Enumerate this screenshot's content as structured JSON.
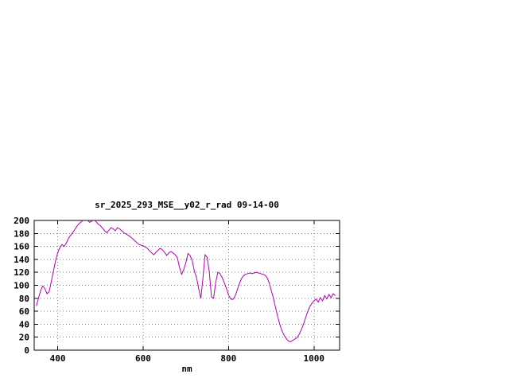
{
  "page": {
    "background": "#ffffff"
  },
  "chart_data": {
    "type": "line",
    "title": "sr_2025_293_MSE__y02_r_rad 09-14-00",
    "xlabel": "nm",
    "ylabel": "",
    "xlim": [
      345,
      1060
    ],
    "ylim": [
      0,
      200
    ],
    "xticks": [
      400,
      600,
      800,
      1000
    ],
    "yticks": [
      0,
      20,
      40,
      60,
      80,
      100,
      120,
      140,
      160,
      180,
      200
    ],
    "grid": true,
    "legend": "none",
    "line_color": "#b400b4",
    "series": [
      {
        "name": "sr_2025_293_MSE__y02_r_rad",
        "points": [
          [
            350,
            68
          ],
          [
            355,
            80
          ],
          [
            360,
            92
          ],
          [
            365,
            99
          ],
          [
            370,
            95
          ],
          [
            375,
            87
          ],
          [
            380,
            90
          ],
          [
            385,
            106
          ],
          [
            390,
            122
          ],
          [
            395,
            138
          ],
          [
            400,
            150
          ],
          [
            405,
            158
          ],
          [
            410,
            163
          ],
          [
            415,
            160
          ],
          [
            420,
            165
          ],
          [
            425,
            172
          ],
          [
            430,
            177
          ],
          [
            435,
            181
          ],
          [
            440,
            186
          ],
          [
            445,
            191
          ],
          [
            450,
            195
          ],
          [
            455,
            198
          ],
          [
            460,
            200
          ],
          [
            465,
            202
          ],
          [
            470,
            200
          ],
          [
            475,
            197
          ],
          [
            480,
            199
          ],
          [
            485,
            201
          ],
          [
            490,
            198
          ],
          [
            495,
            194
          ],
          [
            500,
            192
          ],
          [
            505,
            188
          ],
          [
            510,
            184
          ],
          [
            515,
            181
          ],
          [
            520,
            185
          ],
          [
            525,
            189
          ],
          [
            530,
            187
          ],
          [
            535,
            184
          ],
          [
            540,
            189
          ],
          [
            545,
            187
          ],
          [
            550,
            184
          ],
          [
            555,
            181
          ],
          [
            560,
            179
          ],
          [
            565,
            177
          ],
          [
            570,
            175
          ],
          [
            575,
            172
          ],
          [
            580,
            169
          ],
          [
            585,
            166
          ],
          [
            590,
            163
          ],
          [
            595,
            162
          ],
          [
            600,
            161
          ],
          [
            605,
            159
          ],
          [
            610,
            157
          ],
          [
            615,
            153
          ],
          [
            620,
            150
          ],
          [
            625,
            147
          ],
          [
            630,
            151
          ],
          [
            635,
            154
          ],
          [
            640,
            157
          ],
          [
            645,
            155
          ],
          [
            650,
            151
          ],
          [
            655,
            146
          ],
          [
            660,
            150
          ],
          [
            665,
            152
          ],
          [
            670,
            150
          ],
          [
            675,
            147
          ],
          [
            680,
            143
          ],
          [
            685,
            128
          ],
          [
            690,
            117
          ],
          [
            695,
            124
          ],
          [
            700,
            135
          ],
          [
            705,
            149
          ],
          [
            710,
            146
          ],
          [
            715,
            138
          ],
          [
            720,
            122
          ],
          [
            725,
            112
          ],
          [
            730,
            95
          ],
          [
            735,
            80
          ],
          [
            740,
            110
          ],
          [
            745,
            147
          ],
          [
            750,
            143
          ],
          [
            755,
            120
          ],
          [
            760,
            82
          ],
          [
            765,
            80
          ],
          [
            770,
            105
          ],
          [
            775,
            120
          ],
          [
            780,
            118
          ],
          [
            785,
            112
          ],
          [
            790,
            104
          ],
          [
            795,
            95
          ],
          [
            800,
            85
          ],
          [
            805,
            79
          ],
          [
            810,
            78
          ],
          [
            815,
            83
          ],
          [
            820,
            92
          ],
          [
            825,
            102
          ],
          [
            830,
            110
          ],
          [
            835,
            115
          ],
          [
            840,
            117
          ],
          [
            845,
            118
          ],
          [
            850,
            119
          ],
          [
            855,
            118
          ],
          [
            860,
            119
          ],
          [
            865,
            120
          ],
          [
            870,
            119
          ],
          [
            875,
            118
          ],
          [
            880,
            117
          ],
          [
            885,
            116
          ],
          [
            890,
            112
          ],
          [
            895,
            104
          ],
          [
            900,
            92
          ],
          [
            905,
            80
          ],
          [
            910,
            66
          ],
          [
            915,
            52
          ],
          [
            920,
            40
          ],
          [
            925,
            30
          ],
          [
            930,
            23
          ],
          [
            935,
            18
          ],
          [
            940,
            14
          ],
          [
            945,
            13
          ],
          [
            950,
            15
          ],
          [
            955,
            17
          ],
          [
            960,
            19
          ],
          [
            965,
            24
          ],
          [
            970,
            31
          ],
          [
            975,
            39
          ],
          [
            980,
            49
          ],
          [
            985,
            59
          ],
          [
            990,
            67
          ],
          [
            995,
            72
          ],
          [
            1000,
            76
          ],
          [
            1005,
            79
          ],
          [
            1010,
            74
          ],
          [
            1015,
            81
          ],
          [
            1020,
            76
          ],
          [
            1025,
            84
          ],
          [
            1030,
            79
          ],
          [
            1035,
            86
          ],
          [
            1040,
            81
          ],
          [
            1045,
            87
          ],
          [
            1050,
            84
          ]
        ]
      }
    ]
  }
}
